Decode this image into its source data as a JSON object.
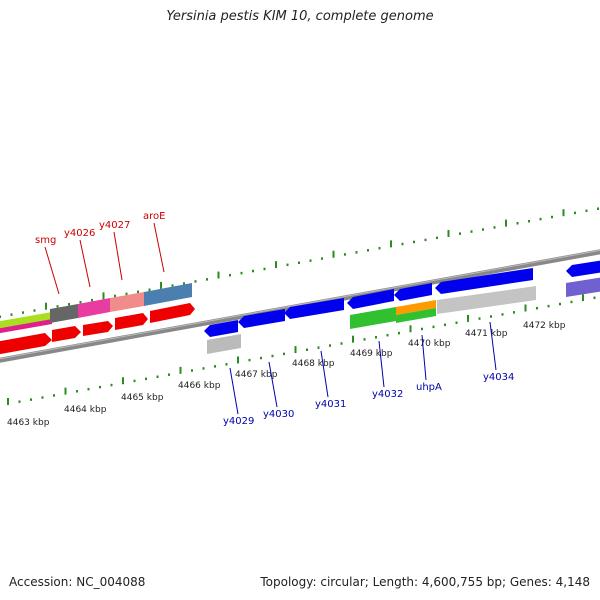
{
  "title": "Yersinia pestis KIM 10, complete genome",
  "footer": {
    "accession": "Accession: NC_004088",
    "summary": "Topology: circular; Length: 4,600,755 bp; Genes: 4,148"
  },
  "ruler_ticks": [
    {
      "label": "4463 kbp"
    },
    {
      "label": "4464 kbp"
    },
    {
      "label": "4465 kbp"
    },
    {
      "label": "4466 kbp"
    },
    {
      "label": "4467 kbp"
    },
    {
      "label": "4468 kbp"
    },
    {
      "label": "4469 kbp"
    },
    {
      "label": "4470 kbp"
    },
    {
      "label": "4471 kbp"
    },
    {
      "label": "4472 kbp"
    }
  ],
  "gene_labels_top": [
    {
      "label": "smg"
    },
    {
      "label": "y4026"
    },
    {
      "label": "y4027"
    },
    {
      "label": "aroE"
    }
  ],
  "gene_labels_bottom": [
    {
      "label": "y4029"
    },
    {
      "label": "y4030"
    },
    {
      "label": "y4031"
    },
    {
      "label": "y4032"
    },
    {
      "label": "uhpA"
    },
    {
      "label": "y4034"
    }
  ],
  "colors": {
    "forward_cds": "#0000ee",
    "reverse_cds": "#ee0000",
    "label_red": "#cc0000",
    "label_blue": "#0000aa",
    "tick_green": "#2e8b22",
    "backbone": "#888888"
  }
}
